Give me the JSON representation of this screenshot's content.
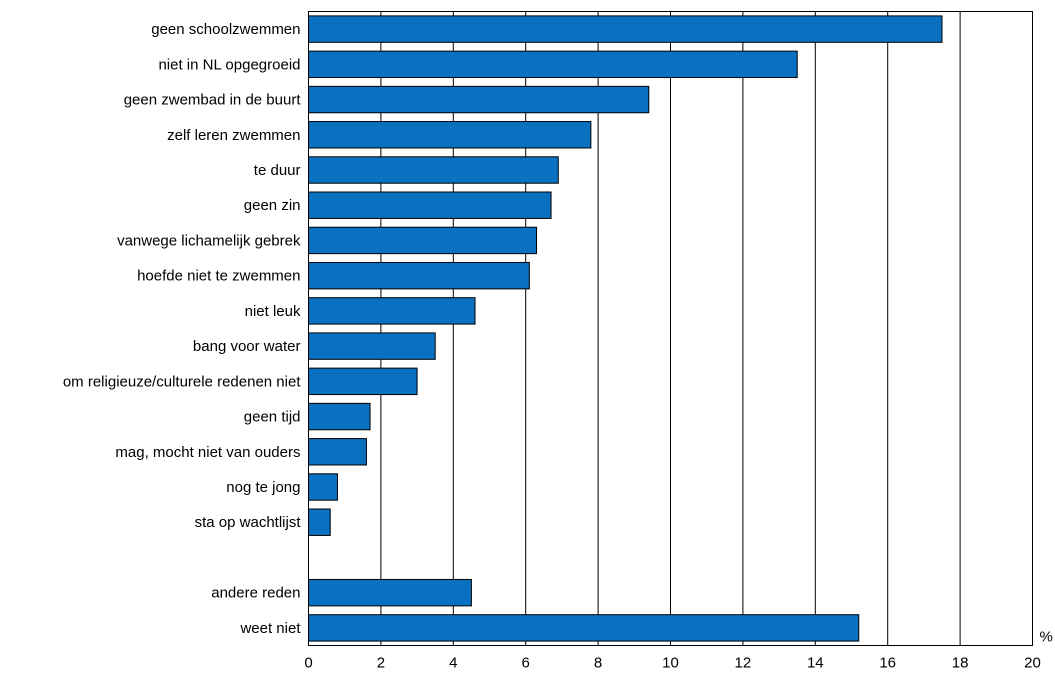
{
  "chart_data": {
    "type": "bar",
    "orientation": "horizontal",
    "title": "",
    "xlabel": "",
    "ylabel": "",
    "unit": "%",
    "categories": [
      "geen schoolzwemmen",
      "niet in NL opgegroeid",
      "geen zwembad in de buurt",
      "zelf leren zwemmen",
      "te duur",
      "geen zin",
      "vanwege lichamelijk gebrek",
      "hoefde niet te zwemmen",
      "niet leuk",
      "bang voor water",
      "om religieuze/culturele redenen niet",
      "geen tijd",
      "mag, mocht niet van ouders",
      "nog te jong",
      "sta op wachtlijst",
      "",
      "andere reden",
      "weet niet"
    ],
    "values": [
      17.5,
      13.5,
      9.4,
      7.8,
      6.9,
      6.7,
      6.3,
      6.1,
      4.6,
      3.5,
      3.0,
      1.7,
      1.6,
      0.8,
      0.6,
      null,
      4.5,
      15.2
    ],
    "xlim": [
      0,
      20
    ],
    "xticks": [
      "0",
      "2",
      "4",
      "6",
      "8",
      "10",
      "12",
      "14",
      "16",
      "18",
      "20"
    ],
    "grid": "vertical",
    "bar_color": "#0a70c0",
    "bar_edge_color": "#000000"
  }
}
